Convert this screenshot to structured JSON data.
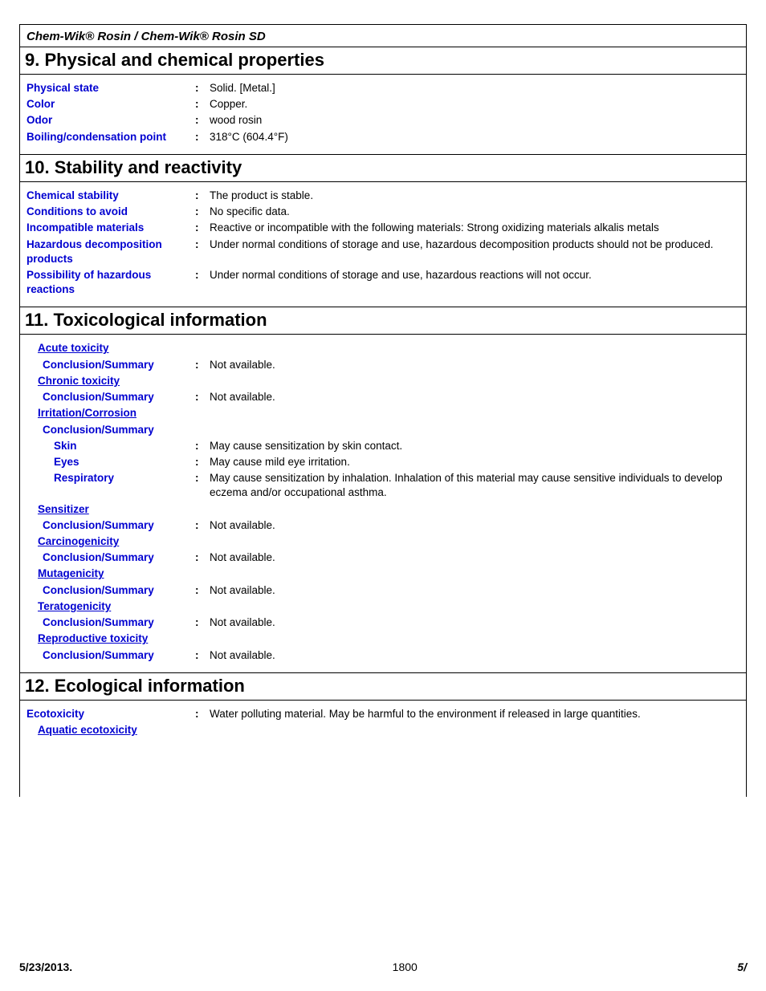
{
  "header": {
    "product_line": "Chem-Wik® Rosin / Chem-Wik® Rosin SD"
  },
  "section9": {
    "title": "9. Physical and chemical properties",
    "rows": [
      {
        "label": "Physical state",
        "value": "Solid. [Metal.]"
      },
      {
        "label": "Color",
        "value": "Copper."
      },
      {
        "label": "Odor",
        "value": "wood rosin"
      },
      {
        "label": "Boiling/condensation point",
        "value": "318°C (604.4°F)"
      }
    ]
  },
  "section10": {
    "title": "10. Stability and reactivity",
    "rows": [
      {
        "label": "Chemical stability",
        "value": "The product is stable."
      },
      {
        "label": "Conditions to avoid",
        "value": "No specific data."
      },
      {
        "label": "Incompatible materials",
        "value": "Reactive or incompatible with the following materials: Strong oxidizing materials alkalis metals"
      },
      {
        "label": "Hazardous decomposition products",
        "value": "Under normal conditions of storage and use, hazardous decomposition products should not be produced."
      },
      {
        "label": "Possibility of hazardous reactions",
        "value": "Under normal conditions of storage and use, hazardous reactions will not occur."
      }
    ]
  },
  "section11": {
    "title": "11. Toxicological information",
    "groups": [
      {
        "header": "Acute toxicity",
        "rows": [
          {
            "label": "Conclusion/Summary",
            "value": "Not available."
          }
        ]
      },
      {
        "header": "Chronic toxicity",
        "rows": [
          {
            "label": "Conclusion/Summary",
            "value": "Not available."
          }
        ]
      },
      {
        "header": "Irritation/Corrosion",
        "subheader": "Conclusion/Summary",
        "rows": [
          {
            "label": "Skin",
            "value": "May cause sensitization by skin contact."
          },
          {
            "label": "Eyes",
            "value": "May cause mild eye irritation."
          },
          {
            "label": "Respiratory",
            "value": "May cause sensitization by inhalation. Inhalation of this material may cause sensitive individuals to develop eczema and/or occupational asthma."
          }
        ]
      },
      {
        "header": "Sensitizer",
        "rows": [
          {
            "label": "Conclusion/Summary",
            "value": "Not available."
          }
        ]
      },
      {
        "header": "Carcinogenicity",
        "rows": [
          {
            "label": "Conclusion/Summary",
            "value": "Not available."
          }
        ]
      },
      {
        "header": "Mutagenicity",
        "rows": [
          {
            "label": "Conclusion/Summary",
            "value": "Not available."
          }
        ]
      },
      {
        "header": "Teratogenicity",
        "rows": [
          {
            "label": "Conclusion/Summary",
            "value": "Not available."
          }
        ]
      },
      {
        "header": "Reproductive toxicity",
        "rows": [
          {
            "label": "Conclusion/Summary",
            "value": "Not available."
          }
        ]
      }
    ]
  },
  "section12": {
    "title": "12. Ecological information",
    "rows": [
      {
        "label": "Ecotoxicity",
        "value": "Water polluting material.  May be harmful to the environment if released in large quantities."
      }
    ],
    "sub": "Aquatic ecotoxicity"
  },
  "footer": {
    "date": "5/23/2013.",
    "doc": "1800",
    "page": "5/"
  }
}
